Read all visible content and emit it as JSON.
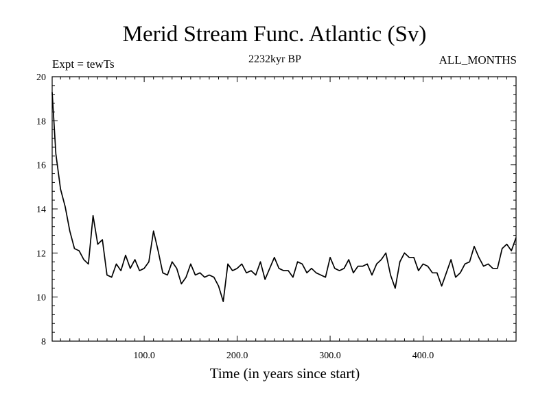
{
  "chart_data": {
    "type": "line",
    "title": "Merid Stream Func. Atlantic (Sv)",
    "subtitle": "2232kyr BP",
    "experiment_label": "Expt = tewTs",
    "season_label": "ALL_MONTHS",
    "xlabel": "Time (in years since start)",
    "ylabel": "",
    "xlim": [
      1,
      500
    ],
    "ylim": [
      8,
      20
    ],
    "x_tick_values": [
      100,
      200,
      300,
      400
    ],
    "x_tick_labels": [
      "100.0",
      "200.0",
      "300.0",
      "400.0"
    ],
    "y_tick_values": [
      8,
      10,
      12,
      14,
      16,
      18,
      20
    ],
    "y_tick_labels": [
      "8",
      "10",
      "12",
      "14",
      "16",
      "18",
      "20"
    ],
    "grid": false,
    "series": [
      {
        "name": "Merid Stream Func. Atlantic",
        "color": "#000000",
        "x": [
          1,
          5,
          10,
          15,
          20,
          25,
          30,
          35,
          40,
          45,
          50,
          55,
          60,
          65,
          70,
          75,
          80,
          85,
          90,
          95,
          100,
          105,
          110,
          115,
          120,
          125,
          130,
          135,
          140,
          145,
          150,
          155,
          160,
          165,
          170,
          175,
          180,
          185,
          190,
          195,
          200,
          205,
          210,
          215,
          220,
          225,
          230,
          235,
          240,
          245,
          250,
          255,
          260,
          265,
          270,
          275,
          280,
          285,
          290,
          295,
          300,
          305,
          310,
          315,
          320,
          325,
          330,
          335,
          340,
          345,
          350,
          355,
          360,
          365,
          370,
          375,
          380,
          385,
          390,
          395,
          400,
          405,
          410,
          415,
          420,
          425,
          430,
          435,
          440,
          445,
          450,
          455,
          460,
          465,
          470,
          475,
          480,
          485,
          490,
          495,
          500
        ],
        "values": [
          19.3,
          16.5,
          14.9,
          14.1,
          13.0,
          12.2,
          12.1,
          11.7,
          11.5,
          13.7,
          12.4,
          12.6,
          11.0,
          10.9,
          11.5,
          11.2,
          11.9,
          11.3,
          11.7,
          11.2,
          11.3,
          11.6,
          13.0,
          12.1,
          11.1,
          11.0,
          11.6,
          11.3,
          10.6,
          10.9,
          11.5,
          11.0,
          11.1,
          10.9,
          11.0,
          10.9,
          10.5,
          9.8,
          11.5,
          11.2,
          11.3,
          11.5,
          11.1,
          11.2,
          11.0,
          11.6,
          10.8,
          11.3,
          11.8,
          11.3,
          11.2,
          11.2,
          10.9,
          11.6,
          11.5,
          11.1,
          11.3,
          11.1,
          11.0,
          10.9,
          11.8,
          11.3,
          11.2,
          11.3,
          11.7,
          11.1,
          11.4,
          11.4,
          11.5,
          11.0,
          11.5,
          11.7,
          12.0,
          11.0,
          10.4,
          11.6,
          12.0,
          11.8,
          11.8,
          11.2,
          11.5,
          11.4,
          11.1,
          11.1,
          10.5,
          11.1,
          11.7,
          10.9,
          11.1,
          11.5,
          11.6,
          12.3,
          11.8,
          11.4,
          11.5,
          11.3,
          11.3,
          12.2,
          12.4,
          12.1,
          12.7
        ]
      }
    ]
  }
}
